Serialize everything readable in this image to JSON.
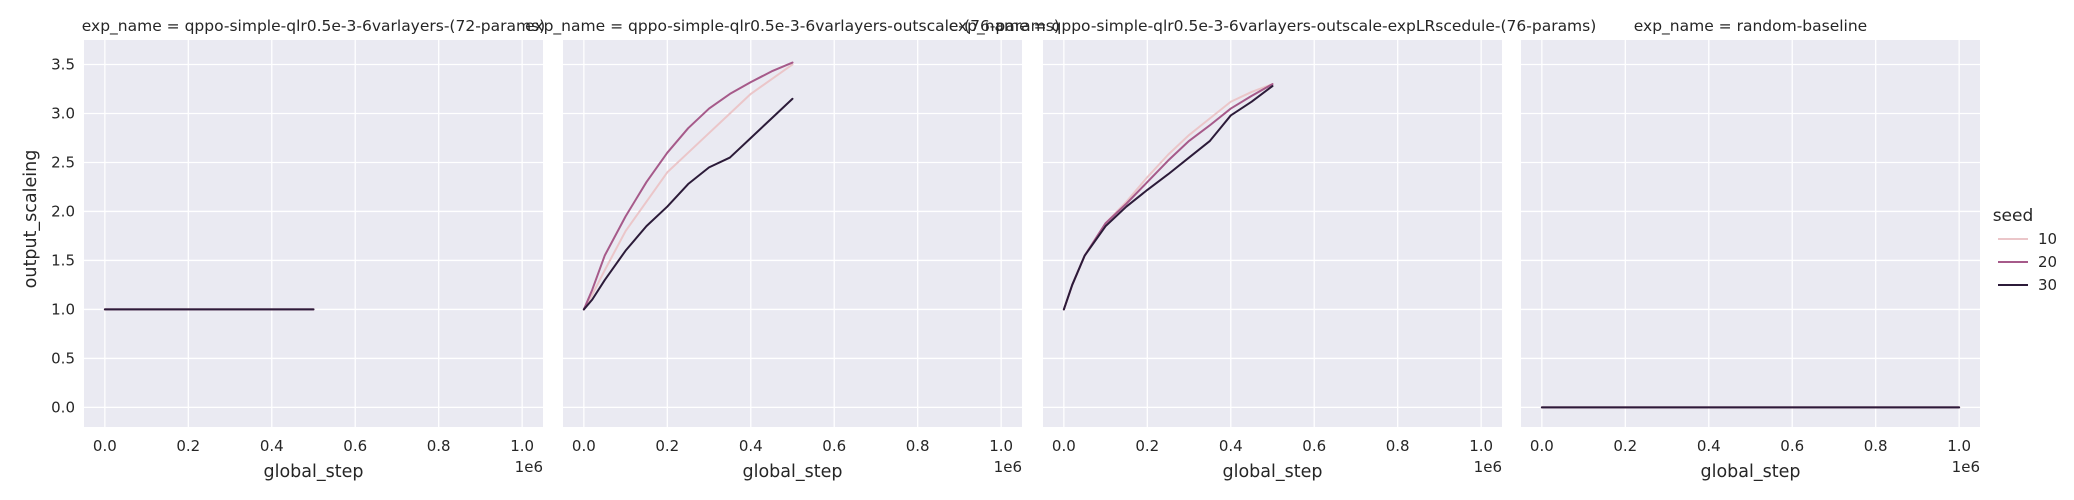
{
  "figure": {
    "ylabel": "output_scaleing",
    "ylim": [
      -0.2,
      3.75
    ],
    "yticks": [
      0.0,
      0.5,
      1.0,
      1.5,
      2.0,
      2.5,
      3.0,
      3.5
    ],
    "xlim": [
      -0.05,
      1.05
    ],
    "xticks": [
      0.0,
      0.2,
      0.4,
      0.6,
      0.8,
      1.0
    ],
    "x_offset_label": "1e6",
    "colors": {
      "axes_bg": "#eaeaf2",
      "grid": "#ffffff"
    }
  },
  "legend": {
    "title": "seed",
    "entries": [
      {
        "label": "10",
        "color": "#ebc6c9"
      },
      {
        "label": "20",
        "color": "#a65a8a"
      },
      {
        "label": "30",
        "color": "#2c1b39"
      }
    ]
  },
  "chart_data": [
    {
      "type": "line",
      "title": "exp_name = qppo-simple-qlr0.5e-3-6varlayers-(72-params)",
      "xlabel": "global_step",
      "series": [
        {
          "name": "10",
          "x": [
            0.0,
            0.5
          ],
          "y": [
            1.0,
            1.0
          ]
        },
        {
          "name": "20",
          "x": [
            0.0,
            0.5
          ],
          "y": [
            1.0,
            1.0
          ]
        },
        {
          "name": "30",
          "x": [
            0.0,
            0.5
          ],
          "y": [
            1.0,
            1.0
          ]
        }
      ]
    },
    {
      "type": "line",
      "title": "exp_name = qppo-simple-qlr0.5e-3-6varlayers-outscale-(76-params)",
      "xlabel": "global_step",
      "series": [
        {
          "name": "10",
          "x": [
            0.0,
            0.02,
            0.05,
            0.1,
            0.15,
            0.2,
            0.25,
            0.3,
            0.35,
            0.4,
            0.45,
            0.5
          ],
          "y": [
            1.0,
            1.15,
            1.4,
            1.8,
            2.1,
            2.4,
            2.6,
            2.8,
            3.0,
            3.2,
            3.35,
            3.5
          ]
        },
        {
          "name": "20",
          "x": [
            0.0,
            0.02,
            0.05,
            0.1,
            0.15,
            0.2,
            0.25,
            0.3,
            0.35,
            0.4,
            0.45,
            0.5
          ],
          "y": [
            1.0,
            1.2,
            1.55,
            1.95,
            2.3,
            2.6,
            2.85,
            3.05,
            3.2,
            3.32,
            3.43,
            3.52
          ]
        },
        {
          "name": "30",
          "x": [
            0.0,
            0.02,
            0.05,
            0.1,
            0.15,
            0.2,
            0.25,
            0.3,
            0.35,
            0.4,
            0.45,
            0.5
          ],
          "y": [
            1.0,
            1.1,
            1.3,
            1.6,
            1.85,
            2.05,
            2.28,
            2.45,
            2.55,
            2.75,
            2.95,
            3.15
          ]
        }
      ]
    },
    {
      "type": "line",
      "title": "exp_name = qppo-simple-qlr0.5e-3-6varlayers-outscale-expLRscedule-(76-params)",
      "xlabel": "global_step",
      "series": [
        {
          "name": "10",
          "x": [
            0.0,
            0.02,
            0.05,
            0.1,
            0.15,
            0.2,
            0.25,
            0.3,
            0.35,
            0.4,
            0.45,
            0.5
          ],
          "y": [
            1.0,
            1.25,
            1.55,
            1.88,
            2.1,
            2.35,
            2.58,
            2.78,
            2.95,
            3.12,
            3.22,
            3.3
          ]
        },
        {
          "name": "20",
          "x": [
            0.0,
            0.02,
            0.05,
            0.1,
            0.15,
            0.2,
            0.25,
            0.3,
            0.35,
            0.4,
            0.45,
            0.5
          ],
          "y": [
            1.0,
            1.25,
            1.55,
            1.88,
            2.08,
            2.3,
            2.52,
            2.72,
            2.88,
            3.05,
            3.18,
            3.3
          ]
        },
        {
          "name": "30",
          "x": [
            0.0,
            0.02,
            0.05,
            0.1,
            0.15,
            0.2,
            0.25,
            0.3,
            0.35,
            0.4,
            0.45,
            0.5
          ],
          "y": [
            1.0,
            1.25,
            1.55,
            1.85,
            2.05,
            2.22,
            2.38,
            2.55,
            2.72,
            2.98,
            3.12,
            3.28
          ]
        }
      ]
    },
    {
      "type": "line",
      "title": "exp_name = random-baseline",
      "xlabel": "global_step",
      "series": [
        {
          "name": "10",
          "x": [
            0.0,
            1.0
          ],
          "y": [
            0.0,
            0.0
          ]
        },
        {
          "name": "20",
          "x": [
            0.0,
            1.0
          ],
          "y": [
            0.0,
            0.0
          ]
        },
        {
          "name": "30",
          "x": [
            0.0,
            1.0
          ],
          "y": [
            0.0,
            0.0
          ]
        }
      ]
    }
  ]
}
